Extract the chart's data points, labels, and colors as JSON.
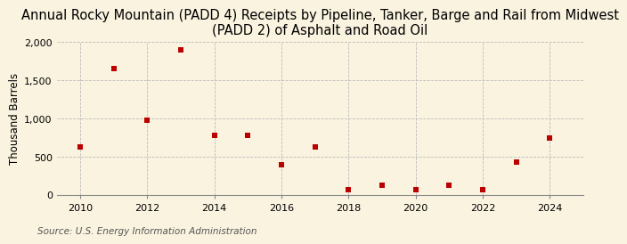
{
  "title": "Annual Rocky Mountain (PADD 4) Receipts by Pipeline, Tanker, Barge and Rail from Midwest\n(PADD 2) of Asphalt and Road Oil",
  "ylabel": "Thousand Barrels",
  "source": "Source: U.S. Energy Information Administration",
  "years": [
    2010,
    2011,
    2012,
    2013,
    2014,
    2015,
    2016,
    2017,
    2018,
    2019,
    2020,
    2021,
    2022,
    2023,
    2024
  ],
  "values": [
    625,
    1650,
    975,
    1900,
    775,
    775,
    400,
    625,
    75,
    125,
    75,
    125,
    75,
    425,
    750
  ],
  "marker_color": "#bb0000",
  "marker_size": 5,
  "background_color": "#faf3e0",
  "grid_color": "#bbbbbb",
  "ylim": [
    0,
    2000
  ],
  "yticks": [
    0,
    500,
    1000,
    1500,
    2000
  ],
  "ytick_labels": [
    "0",
    "500",
    "1,000",
    "1,500",
    "2,000"
  ],
  "xlim": [
    2009.3,
    2025.0
  ],
  "xticks": [
    2010,
    2012,
    2014,
    2016,
    2018,
    2020,
    2022,
    2024
  ],
  "title_fontsize": 10.5,
  "axis_label_fontsize": 8.5,
  "tick_fontsize": 8,
  "source_fontsize": 7.5
}
